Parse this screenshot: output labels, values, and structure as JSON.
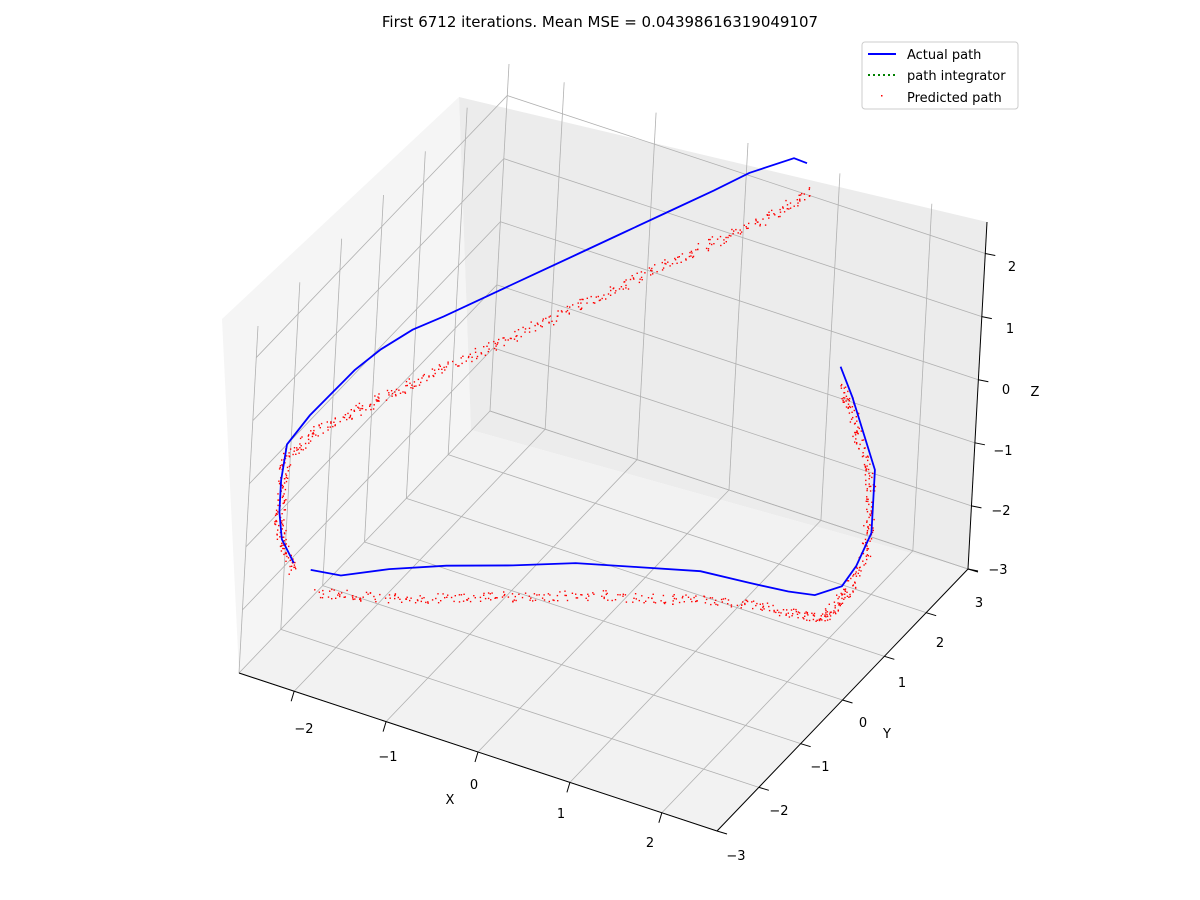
{
  "chart_data": {
    "type": "scatter",
    "projection": "3d",
    "title": "First 6712 iterations. Mean MSE = 0.04398616319049107",
    "xlabel": "X",
    "ylabel": "Y",
    "zlabel": "Z",
    "xlim": [
      -2.6,
      2.6
    ],
    "ylim": [
      -3,
      3
    ],
    "zlim": [
      -3,
      2.5
    ],
    "xticks": [
      "−2",
      "−1",
      "0",
      "1",
      "2"
    ],
    "yticks": [
      "−3",
      "−2",
      "−1",
      "0",
      "1",
      "2",
      "3"
    ],
    "zticks": [
      "−3",
      "−2",
      "−1",
      "0",
      "1",
      "2"
    ],
    "grid": true,
    "legend_position": "top-right",
    "colors": {
      "actual": "#0000ff",
      "integrator": "#008000",
      "predicted": "#ff0000"
    },
    "series": [
      {
        "name": "Actual path",
        "style": "solid-line",
        "color": "#0000ff",
        "points": [
          [
            -2.5,
            2.0,
            -1.9
          ],
          [
            -2.6,
            2.1,
            -1.5
          ],
          [
            -2.6,
            2.2,
            -1.0
          ],
          [
            -2.6,
            2.2,
            -0.5
          ],
          [
            -2.6,
            2.1,
            0.0
          ],
          [
            -2.5,
            1.8,
            0.3
          ],
          [
            -2.4,
            1.5,
            0.5
          ],
          [
            -2.3,
            1.2,
            0.7
          ],
          [
            -2.2,
            0.8,
            0.8
          ],
          [
            -2.0,
            0.5,
            1.0
          ],
          [
            -1.8,
            0.2,
            1.1
          ],
          [
            -1.5,
            -0.2,
            1.3
          ],
          [
            -1.2,
            -0.6,
            1.5
          ],
          [
            -0.9,
            -1.0,
            1.7
          ],
          [
            -0.6,
            -1.4,
            1.9
          ],
          [
            -0.3,
            -1.8,
            2.1
          ],
          [
            0.0,
            -2.2,
            2.3
          ],
          [
            0.2,
            -2.6,
            2.4
          ],
          [
            0.5,
            -3.0,
            2.5
          ],
          [
            0.6,
            -3.1,
            2.4
          ],
          [
            -2.4,
            1.8,
            -2.1
          ],
          [
            -2.2,
            1.5,
            -2.3
          ],
          [
            -1.9,
            1.0,
            -2.4
          ],
          [
            -1.5,
            0.5,
            -2.5
          ],
          [
            -1.0,
            0.0,
            -2.6
          ],
          [
            -0.5,
            -0.4,
            -2.6
          ],
          [
            0.0,
            -0.8,
            -2.7
          ],
          [
            0.5,
            -1.2,
            -2.8
          ],
          [
            0.9,
            -1.5,
            -3.0
          ],
          [
            1.2,
            -1.8,
            -3.2
          ],
          [
            1.4,
            -2.0,
            -3.3
          ],
          [
            1.6,
            -2.2,
            -3.2
          ],
          [
            1.7,
            -2.3,
            -2.9
          ],
          [
            1.8,
            -2.4,
            -2.4
          ],
          [
            1.8,
            -2.4,
            -1.9
          ],
          [
            1.8,
            -2.4,
            -1.4
          ],
          [
            1.7,
            -2.3,
            -0.8
          ],
          [
            1.6,
            -2.2,
            -0.2
          ],
          [
            1.5,
            -2.1,
            0.3
          ]
        ]
      },
      {
        "name": "path integrator",
        "style": "dotted-line",
        "color": "#008000",
        "points": []
      },
      {
        "name": "Predicted path",
        "style": "points",
        "color": "#ff0000",
        "points": [
          [
            -2.5,
            2.0,
            -2.0
          ],
          [
            -2.6,
            2.1,
            -1.6
          ],
          [
            -2.6,
            2.2,
            -1.1
          ],
          [
            -2.6,
            2.2,
            -0.6
          ],
          [
            -2.6,
            2.1,
            -0.2
          ],
          [
            -2.5,
            1.8,
            0.0
          ],
          [
            -2.3,
            1.4,
            0.1
          ],
          [
            -2.1,
            1.0,
            0.2
          ],
          [
            -1.9,
            0.6,
            0.3
          ],
          [
            -1.6,
            0.2,
            0.5
          ],
          [
            -1.3,
            -0.2,
            0.7
          ],
          [
            -1.0,
            -0.6,
            0.9
          ],
          [
            -0.7,
            -1.0,
            1.1
          ],
          [
            -0.4,
            -1.4,
            1.3
          ],
          [
            -0.1,
            -1.8,
            1.5
          ],
          [
            0.2,
            -2.2,
            1.7
          ],
          [
            0.5,
            -2.6,
            1.9
          ],
          [
            0.7,
            -3.0,
            2.1
          ],
          [
            -2.3,
            1.8,
            -2.4
          ],
          [
            -2.0,
            1.4,
            -2.6
          ],
          [
            -1.6,
            0.9,
            -2.8
          ],
          [
            -1.2,
            0.4,
            -2.9
          ],
          [
            -0.8,
            0.0,
            -3.0
          ],
          [
            -0.3,
            -0.4,
            -3.0
          ],
          [
            0.2,
            -0.8,
            -3.1
          ],
          [
            0.6,
            -1.2,
            -3.2
          ],
          [
            1.0,
            -1.5,
            -3.3
          ],
          [
            1.3,
            -1.8,
            -3.5
          ],
          [
            1.5,
            -2.0,
            -3.6
          ],
          [
            1.6,
            -2.1,
            -3.4
          ],
          [
            1.7,
            -2.2,
            -3.1
          ],
          [
            1.8,
            -2.3,
            -2.6
          ],
          [
            1.8,
            -2.3,
            -2.1
          ],
          [
            1.8,
            -2.3,
            -1.5
          ],
          [
            1.7,
            -2.2,
            -0.9
          ],
          [
            1.6,
            -2.2,
            -0.4
          ],
          [
            1.5,
            -2.1,
            0.0
          ]
        ]
      }
    ]
  }
}
